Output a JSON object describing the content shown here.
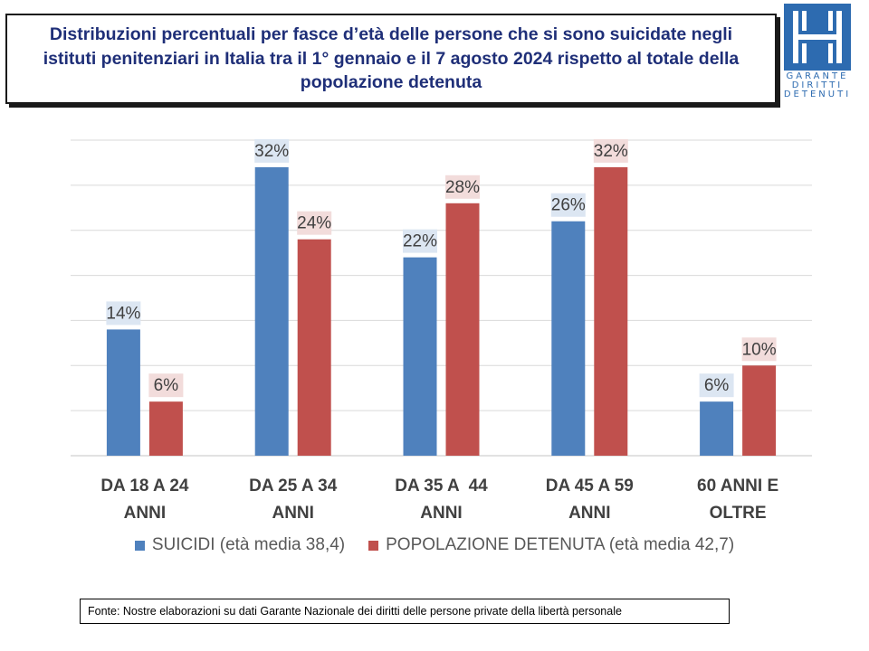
{
  "title": "Distribuzioni percentuali per fasce d’età delle persone che si sono suicidate negli istituti penitenziari in Italia tra il 1° gennaio e il 7 agosto 2024  rispetto al totale della popolazione detenuta",
  "logo": {
    "lines": [
      "GARANTE",
      "DIRITTI",
      "DETENUTI"
    ],
    "color": "#2d6bb0"
  },
  "source": "Fonte: Nostre elaborazioni su dati Garante Nazionale dei diritti delle persone private della libertà personale",
  "chart_data": {
    "type": "bar",
    "categories": [
      [
        "DA 18 A 24",
        "ANNI"
      ],
      [
        "DA 25 A 34",
        "ANNI"
      ],
      [
        "DA 35 A  44",
        "ANNI"
      ],
      [
        "DA 45 A 59",
        "ANNI"
      ],
      [
        "60 ANNI E",
        "OLTRE"
      ]
    ],
    "series": [
      {
        "name": "SUICIDI (età media 38,4)",
        "values": [
          14,
          32,
          22,
          26,
          6
        ],
        "labels": [
          "14%",
          "32%",
          "22%",
          "26%",
          "6%"
        ],
        "color": "#4f81bd",
        "label_bg": "#dce6f2"
      },
      {
        "name": "POPOLAZIONE DETENUTA (età media 42,7)",
        "values": [
          6,
          24,
          28,
          32,
          10
        ],
        "labels": [
          "6%",
          "24%",
          "28%",
          "32%",
          "10%"
        ],
        "color": "#c0504d",
        "label_bg": "#f2dcdb"
      }
    ],
    "ylim": [
      0,
      35
    ],
    "grid": true,
    "legend": "bottom"
  }
}
